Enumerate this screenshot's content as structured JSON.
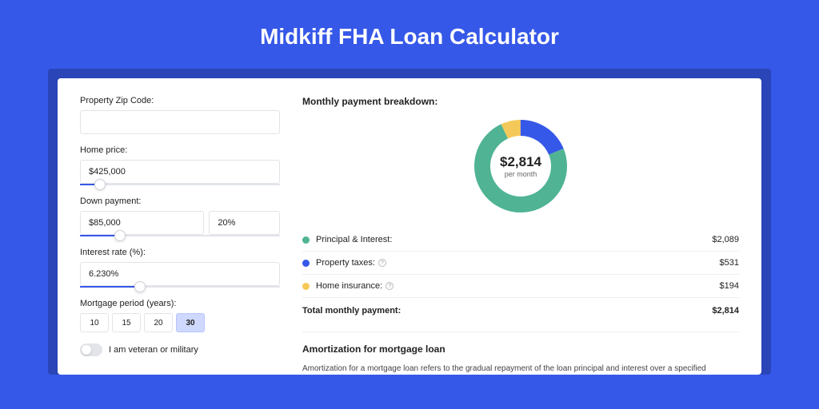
{
  "page": {
    "title": "Midkiff FHA Loan Calculator",
    "background_color": "#3658e8",
    "shell_color": "#2a45b8",
    "card_color": "#ffffff"
  },
  "form": {
    "zip": {
      "label": "Property Zip Code:",
      "value": ""
    },
    "home_price": {
      "label": "Home price:",
      "value": "$425,000",
      "slider_pct": 10
    },
    "down_payment": {
      "label": "Down payment:",
      "amount": "$85,000",
      "percent": "20%",
      "slider_pct": 20
    },
    "interest_rate": {
      "label": "Interest rate (%):",
      "value": "6.230%",
      "slider_pct": 30
    },
    "mortgage_period": {
      "label": "Mortgage period (years):",
      "options": [
        "10",
        "15",
        "20",
        "30"
      ],
      "active": "30"
    },
    "veteran": {
      "label": "I am veteran or military",
      "checked": false
    }
  },
  "breakdown": {
    "title": "Monthly payment breakdown:",
    "total_display": "$2,814",
    "total_sublabel": "per month",
    "chart": {
      "type": "donut",
      "size": 120,
      "thickness": 20,
      "slices": [
        {
          "label": "Principal & Interest:",
          "value_display": "$2,089",
          "value": 2089,
          "color": "#4fb394",
          "has_info": false
        },
        {
          "label": "Property taxes:",
          "value_display": "$531",
          "value": 531,
          "color": "#3658e8",
          "has_info": true
        },
        {
          "label": "Home insurance:",
          "value_display": "$194",
          "value": 194,
          "color": "#f4c959",
          "has_info": true
        }
      ]
    },
    "total_row": {
      "label": "Total monthly payment:",
      "value_display": "$2,814"
    }
  },
  "amortization": {
    "title": "Amortization for mortgage loan",
    "text": "Amortization for a mortgage loan refers to the gradual repayment of the loan principal and interest over a specified"
  }
}
